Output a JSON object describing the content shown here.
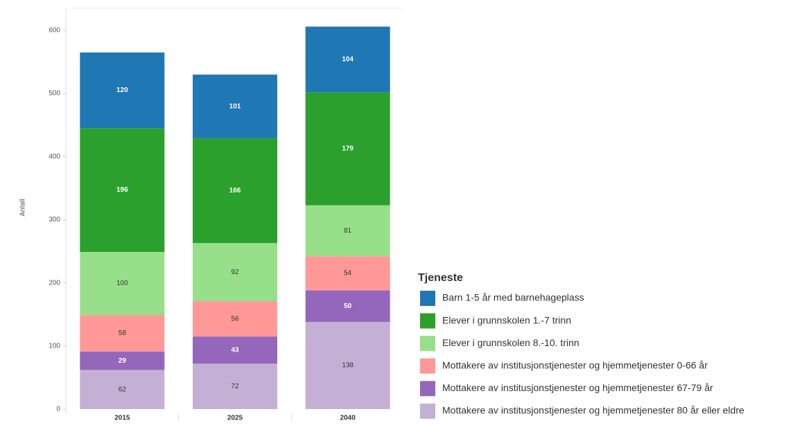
{
  "chart_data": {
    "type": "stacked_bar",
    "y_label": "Antall",
    "legend_title": "Tjeneste",
    "categories": [
      "2015",
      "2025",
      "2040"
    ],
    "series": [
      {
        "name": "Barn 1-5 år med barnehageplass",
        "color": "#1f77b4",
        "values": [
          120,
          101,
          104
        ]
      },
      {
        "name": "Elever i grunnskolen 1.-7 trinn",
        "color": "#2ca02c",
        "values": [
          196,
          166,
          179
        ]
      },
      {
        "name": "Elever i grunnskolen 8.-10. trinn",
        "color": "#98df8a",
        "values": [
          100,
          92,
          81
        ]
      },
      {
        "name": "Mottakere av institusjonstjenester og hjemmetjenester 0-66 år",
        "color": "#ff9896",
        "values": [
          58,
          56,
          54
        ]
      },
      {
        "name": "Mottakere av institusjonstjenester og hjemmetjenester 67-79 år",
        "color": "#9467bd",
        "values": [
          29,
          43,
          50
        ]
      },
      {
        "name": "Mottakere av institusjonstjenester og hjemmetjenester 80 år eller eldre",
        "color": "#c5b0d5",
        "values": [
          62,
          72,
          138
        ]
      }
    ],
    "ylim": [
      0,
      635
    ],
    "yticks": [
      0,
      100,
      200,
      300,
      400,
      500,
      600
    ],
    "legend_position": "right"
  }
}
